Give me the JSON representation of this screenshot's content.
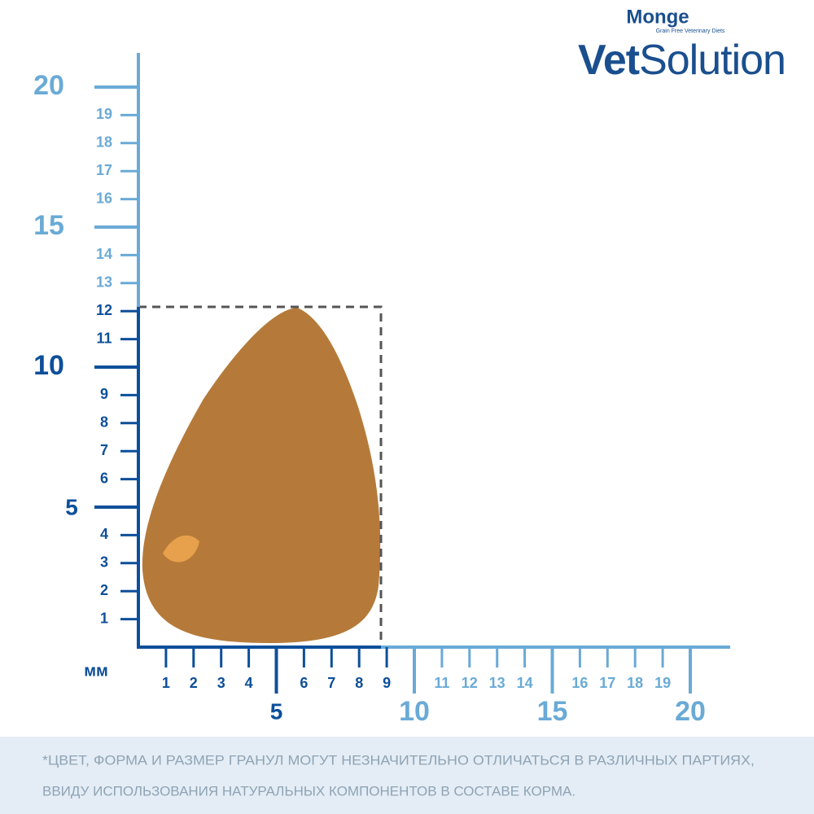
{
  "brand": {
    "name": "Monge",
    "tagline": "Grain Free Veterinary Diets",
    "product_bold": "Vet",
    "product_light": "Solution"
  },
  "ruler": {
    "unit": "мм",
    "y_small_labels": [
      1,
      2,
      3,
      4,
      6,
      7,
      8,
      9,
      11,
      12,
      13,
      14,
      16,
      17,
      18,
      19
    ],
    "y_major_labels": [
      5,
      10,
      15,
      20
    ],
    "x_small_labels": [
      1,
      2,
      3,
      4,
      6,
      7,
      8,
      9,
      11,
      12,
      13,
      14,
      16,
      17,
      18,
      19
    ],
    "x_major_labels": [
      5,
      10,
      15,
      20
    ]
  },
  "footnote": {
    "line1": "*ЦВЕТ, ФОРМА И РАЗМЕР ГРАНУЛ МОГУТ НЕЗНАЧИТЕЛЬНО ОТЛИЧАТЬСЯ В РАЗЛИЧНЫХ ПАРТИЯХ,",
    "line2": "ВВИДУ ИСПОЛЬЗОВАНИЯ НАТУРАЛЬНЫХ КОМПОНЕНТОВ В СОСТАВЕ КОРМА."
  }
}
